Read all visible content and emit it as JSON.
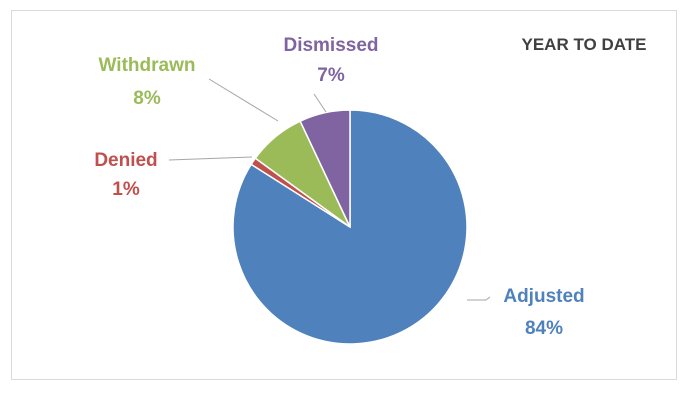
{
  "chart_data": {
    "type": "pie",
    "title": "YEAR TO DATE",
    "slices": [
      {
        "label": "Adjusted",
        "value": 84,
        "value_text": "84%",
        "color": "#4f81bd"
      },
      {
        "label": "Denied",
        "value": 1,
        "value_text": "1%",
        "color": "#c0504d"
      },
      {
        "label": "Withdrawn",
        "value": 8,
        "value_text": "8%",
        "color": "#9bbb59"
      },
      {
        "label": "Dismissed",
        "value": 7,
        "value_text": "7%",
        "color": "#8064a2"
      }
    ],
    "start_angle_deg": 0,
    "direction": "clockwise",
    "legend": "none"
  }
}
